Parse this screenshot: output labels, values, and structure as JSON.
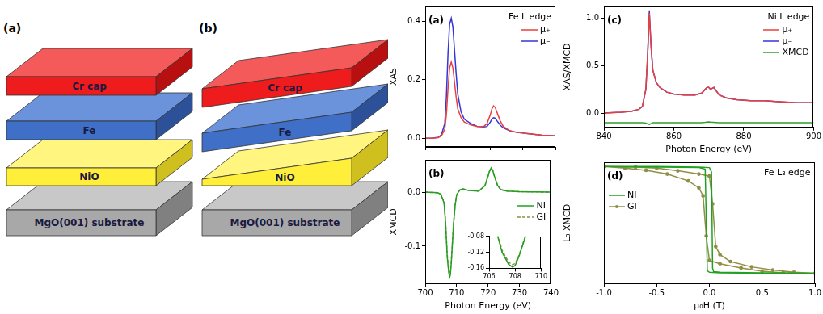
{
  "diagrams": [
    {
      "label": "(a)",
      "layers": [
        "Cr cap",
        "Fe",
        "NiO",
        "MgO(001) substrate"
      ]
    },
    {
      "label": "(b)",
      "layers": [
        "Cr cap",
        "Fe",
        "NiO",
        "MgO(001) substrate"
      ]
    }
  ],
  "chart_data": [
    {
      "type": "line",
      "panel_label": "(a)",
      "annotation": "Fe L edge",
      "y_label": "XAS",
      "x": [
        700,
        702,
        704,
        705,
        706,
        706.5,
        707,
        707.5,
        708,
        708.5,
        709,
        709.5,
        710,
        711,
        712,
        714,
        716,
        718,
        719,
        720,
        720.5,
        721,
        721.5,
        722,
        723,
        724,
        726,
        728,
        732,
        736,
        740
      ],
      "series": [
        {
          "name": "μ₊",
          "color": "#e8413c",
          "values": [
            0,
            0,
            0.002,
            0.008,
            0.03,
            0.08,
            0.17,
            0.24,
            0.26,
            0.24,
            0.19,
            0.14,
            0.1,
            0.07,
            0.055,
            0.045,
            0.04,
            0.04,
            0.05,
            0.08,
            0.1,
            0.11,
            0.105,
            0.09,
            0.06,
            0.04,
            0.025,
            0.02,
            0.015,
            0.01,
            0.008
          ]
        },
        {
          "name": "μ₋",
          "color": "#3535d8",
          "values": [
            0,
            0,
            0.003,
            0.012,
            0.05,
            0.14,
            0.29,
            0.39,
            0.41,
            0.38,
            0.3,
            0.22,
            0.15,
            0.09,
            0.065,
            0.05,
            0.04,
            0.038,
            0.04,
            0.055,
            0.065,
            0.07,
            0.068,
            0.06,
            0.045,
            0.035,
            0.025,
            0.02,
            0.015,
            0.01,
            0.008
          ]
        }
      ],
      "xlim": [
        700,
        740
      ],
      "xticks": [
        700,
        710,
        720,
        730,
        740
      ],
      "ylim": [
        -0.03,
        0.45
      ],
      "yticks": [
        {
          "value": 0,
          "label": "0.0"
        },
        0.2,
        0.4
      ],
      "grid": false,
      "legend": "upper right",
      "tick_labels": "y"
    },
    {
      "type": "line",
      "panel_label": "(b)",
      "y_label": "XMCD",
      "x_label": "Photon Energy (eV)",
      "x": [
        700,
        704,
        705,
        706,
        706.5,
        707,
        707.5,
        707.8,
        708,
        708.3,
        708.6,
        709,
        709.5,
        710,
        711,
        712,
        714,
        717,
        719,
        720,
        720.5,
        721,
        721.5,
        722,
        723,
        724,
        726,
        730,
        740
      ],
      "series": [
        {
          "name": "NI",
          "color": "#22a022",
          "line_style": "solid",
          "values": [
            0,
            -0.001,
            -0.004,
            -0.02,
            -0.06,
            -0.12,
            -0.15,
            -0.157,
            -0.153,
            -0.13,
            -0.1,
            -0.06,
            -0.025,
            -0.005,
            0.004,
            0.006,
            0.003,
            0.002,
            0.012,
            0.03,
            0.04,
            0.045,
            0.04,
            0.03,
            0.013,
            0.005,
            0.002,
            0.001,
            0
          ]
        },
        {
          "name": "GI",
          "color": "#8f8f45",
          "line_style": "dashed",
          "values": [
            0,
            -0.001,
            -0.004,
            -0.018,
            -0.057,
            -0.115,
            -0.145,
            -0.151,
            -0.148,
            -0.127,
            -0.098,
            -0.058,
            -0.024,
            -0.005,
            0.004,
            0.006,
            0.003,
            0.002,
            0.012,
            0.03,
            0.039,
            0.044,
            0.04,
            0.03,
            0.013,
            0.005,
            0.002,
            0.001,
            0
          ]
        }
      ],
      "xlim": [
        700,
        740
      ],
      "xticks": [
        700,
        710,
        720,
        730,
        740
      ],
      "ylim": [
        -0.17,
        0.06
      ],
      "yticks": [
        -0.1,
        {
          "value": 0,
          "label": "0.0"
        }
      ],
      "grid": false,
      "legend": "center right",
      "inset": {
        "xlim": [
          706,
          710
        ],
        "xticks": [
          706,
          708,
          710
        ],
        "ylim": [
          -0.16,
          -0.08
        ],
        "yticks": [
          -0.16,
          -0.12,
          -0.08
        ]
      }
    },
    {
      "type": "line",
      "panel_label": "(c)",
      "annotation": "Ni L edge",
      "y_label": "XAS/XMCD",
      "x_label": "Photon Energy (eV)",
      "x": [
        840,
        845,
        848,
        850,
        851,
        852,
        852.5,
        853,
        853.5,
        854,
        855,
        856,
        858,
        860,
        863,
        866,
        868,
        869,
        869.5,
        870,
        870.5,
        871,
        871.5,
        872,
        873,
        875,
        878,
        882,
        886,
        890,
        895,
        900
      ],
      "series": [
        {
          "name": "μ₊",
          "color": "#e8413c",
          "values": [
            0,
            0.01,
            0.02,
            0.04,
            0.07,
            0.25,
            0.6,
            1.05,
            0.69,
            0.45,
            0.32,
            0.27,
            0.22,
            0.2,
            0.19,
            0.19,
            0.21,
            0.25,
            0.27,
            0.27,
            0.25,
            0.26,
            0.27,
            0.24,
            0.19,
            0.16,
            0.14,
            0.13,
            0.13,
            0.12,
            0.11,
            0.11
          ]
        },
        {
          "name": "μ₋",
          "color": "#3535d8",
          "values": [
            0,
            0.01,
            0.02,
            0.04,
            0.07,
            0.25,
            0.6,
            1.07,
            0.7,
            0.45,
            0.32,
            0.27,
            0.22,
            0.2,
            0.19,
            0.19,
            0.21,
            0.25,
            0.27,
            0.27,
            0.25,
            0.26,
            0.27,
            0.24,
            0.19,
            0.16,
            0.14,
            0.13,
            0.13,
            0.12,
            0.11,
            0.11
          ]
        },
        {
          "name": "XMCD",
          "color": "#2ca02c",
          "values": [
            -0.1,
            -0.1,
            -0.1,
            -0.1,
            -0.1,
            -0.105,
            -0.115,
            -0.12,
            -0.11,
            -0.1,
            -0.1,
            -0.1,
            -0.1,
            -0.1,
            -0.1,
            -0.1,
            -0.1,
            -0.097,
            -0.095,
            -0.093,
            -0.095,
            -0.096,
            -0.097,
            -0.098,
            -0.1,
            -0.1,
            -0.1,
            -0.1,
            -0.1,
            -0.1,
            -0.1,
            -0.1
          ]
        }
      ],
      "xlim": [
        840,
        900
      ],
      "xticks": [
        840,
        860,
        880,
        900
      ],
      "ylim": [
        -0.15,
        1.12
      ],
      "yticks": [
        {
          "value": 0,
          "label": "0.0"
        },
        0.5,
        {
          "value": 1,
          "label": "1.0"
        }
      ],
      "grid": false,
      "legend": "upper right"
    },
    {
      "type": "line",
      "panel_label": "(d)",
      "annotation": "Fe L₃ edge",
      "y_label": "L₃-XMCD",
      "x_label": "μ₀H (T)",
      "series": [
        {
          "name": "NI",
          "color": "#22a022",
          "x": [
            -1,
            -0.5,
            -0.1,
            0,
            0.02,
            0.03,
            0.04,
            0.1,
            0.5,
            1,
            0.5,
            0.1,
            0,
            -0.02,
            -0.03,
            -0.04,
            -0.1,
            -0.5,
            -1
          ],
          "values": [
            1,
            1,
            0.99,
            0.98,
            0.9,
            -0.9,
            -0.97,
            -0.98,
            -0.99,
            -1,
            -1,
            -0.99,
            -0.98,
            -0.95,
            0,
            0.95,
            0.98,
            0.99,
            1
          ]
        },
        {
          "name": "GI",
          "color": "#8f8f45",
          "marker": "circle",
          "x": [
            -1,
            -0.7,
            -0.5,
            -0.3,
            -0.1,
            0,
            0.03,
            0.06,
            0.1,
            0.2,
            0.4,
            0.6,
            0.8,
            1,
            0.7,
            0.5,
            0.3,
            0.1,
            0,
            -0.03,
            -0.06,
            -0.1,
            -0.2,
            -0.4,
            -0.6,
            -0.8,
            -1
          ],
          "values": [
            1,
            0.99,
            0.97,
            0.92,
            0.86,
            0.82,
            0.3,
            -0.5,
            -0.65,
            -0.78,
            -0.88,
            -0.94,
            -0.98,
            -1,
            -0.99,
            -0.96,
            -0.9,
            -0.82,
            -0.76,
            -0.3,
            0.45,
            0.6,
            0.73,
            0.86,
            0.93,
            0.97,
            1
          ]
        }
      ],
      "xlim": [
        -1,
        1
      ],
      "xticks": [
        {
          "value": -1,
          "label": "-1.0"
        },
        -0.5,
        {
          "value": 0,
          "label": "0.0"
        },
        0.5,
        {
          "value": 1,
          "label": "1.0"
        }
      ],
      "ylim": [
        -1.2,
        1.08
      ],
      "grid": false,
      "legend": "upper left",
      "tick_labels": "x"
    }
  ]
}
